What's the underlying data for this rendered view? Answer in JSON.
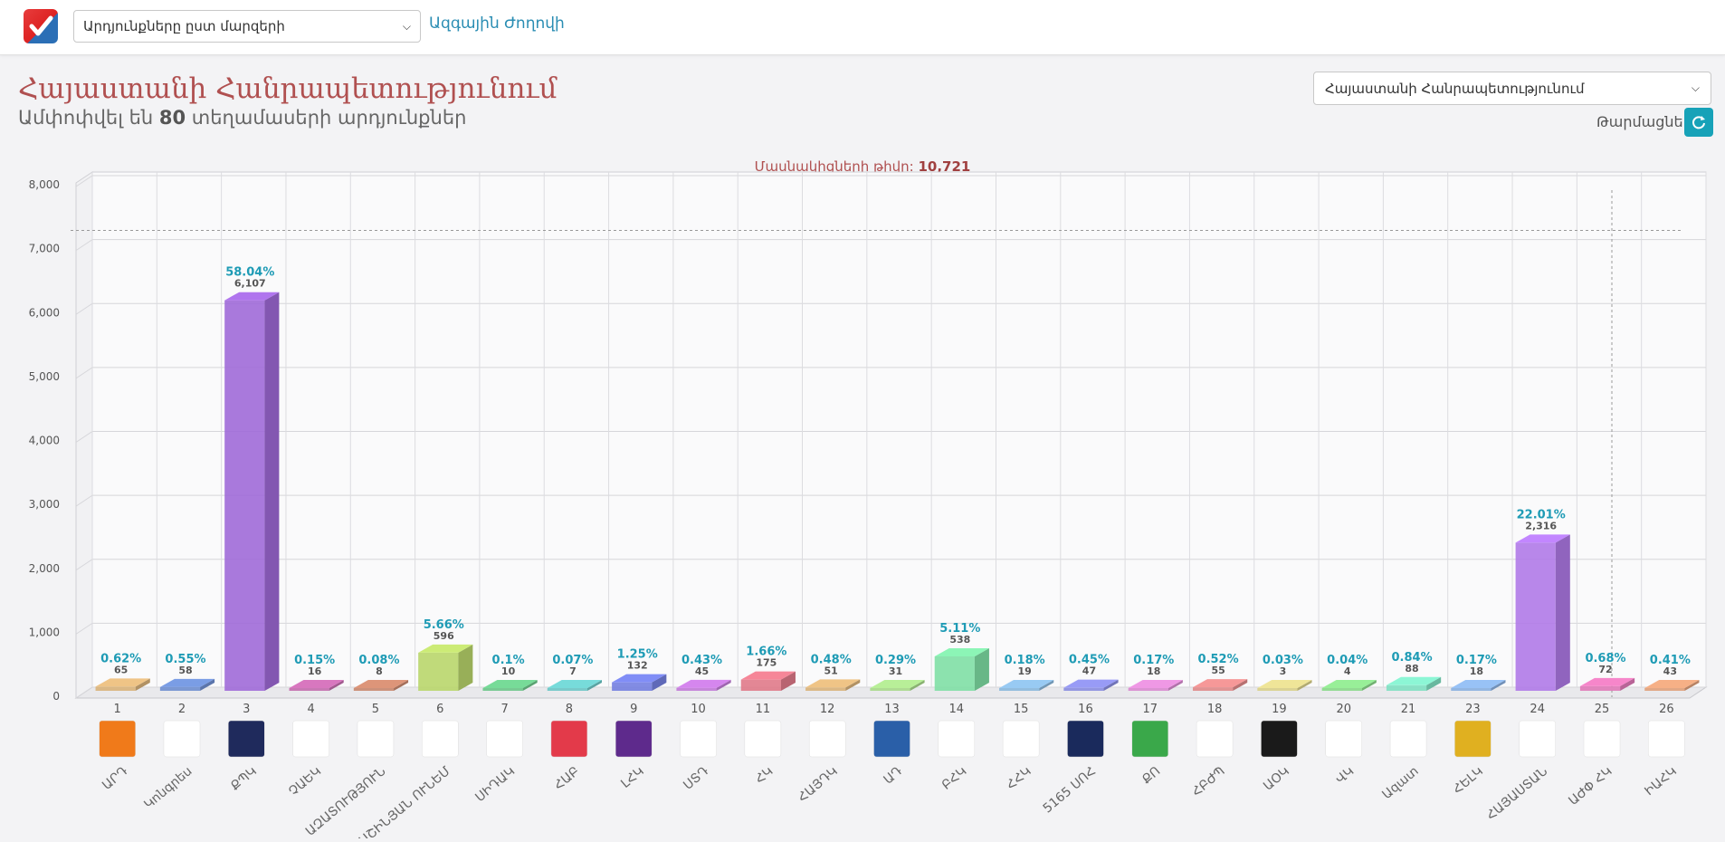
{
  "header": {
    "select_value": "Արդյունքները ըստ մարզերի",
    "nav_link": "Ազգային Ժողովի"
  },
  "main": {
    "title": "Հայաստանի Հանրապետությունում",
    "subtitle_prefix": "Ամփոփվել են ",
    "subtitle_count": "80",
    "subtitle_suffix": " տեղամասերի արդյունքներ",
    "region_select": "Հայաստանի Հանրապետությունում",
    "refresh_label": "Թարմացնել"
  },
  "colors": {
    "accent": "#2a8db3",
    "title": "#b05050",
    "percent": "#1e9bb5",
    "button": "#17a2b8"
  },
  "chart_data": {
    "type": "bar",
    "title_label": "Մասնակիցների թիվը:",
    "title_value": "10,721",
    "ylim": [
      0,
      8000
    ],
    "yticks": [
      "0",
      "1,000",
      "2,000",
      "3,000",
      "4,000",
      "5,000",
      "6,000",
      "7,000",
      "8,000"
    ],
    "grid": true,
    "categories": [
      "1",
      "2",
      "3",
      "4",
      "5",
      "6",
      "7",
      "8",
      "9",
      "10",
      "11",
      "12",
      "13",
      "14",
      "15",
      "16",
      "17",
      "18",
      "19",
      "20",
      "21",
      "23",
      "24",
      "25",
      "26"
    ],
    "party_labels": [
      "ԱՐԴ",
      "Կոնգրես",
      "ՔՊԿ",
      "ՉԱԵԿ",
      "ԱԶԱՏՈՒԹՅՈՒՆ",
      "ՊԱՇԻՆՅԱՆ ՈՒՆԵՄ",
      "ՍԻԴԱԿ",
      "ՀԱԲ",
      "ԼՀԿ",
      "ՍՏԴ",
      "ՀԿ",
      "ՀԱՅԴԿ",
      "ԱԴ",
      "ԲՀԿ",
      "ՀՀԿ",
      "5165 ՍՈՀ",
      "ՔՈ",
      "ՀԲԺՊ",
      "ԱՕԿ",
      "ՎԿ",
      "Ազատ",
      "ՀԵԼԿ",
      "ՀԱՅԱՍՏԱՆ",
      "ԱԺՓ ՀԿ",
      "ԻԱՀԿ"
    ],
    "values": [
      65,
      58,
      6107,
      16,
      8,
      596,
      10,
      7,
      132,
      45,
      175,
      51,
      31,
      538,
      19,
      47,
      18,
      55,
      3,
      4,
      88,
      18,
      2316,
      72,
      43
    ],
    "value_labels": [
      "65",
      "58",
      "6,107",
      "16",
      "8",
      "596",
      "10",
      "7",
      "132",
      "45",
      "175",
      "51",
      "31",
      "538",
      "19",
      "47",
      "18",
      "55",
      "3",
      "4",
      "88",
      "18",
      "2,316",
      "72",
      "43"
    ],
    "percents": [
      "0.62%",
      "0.55%",
      "58.04%",
      "0.15%",
      "0.08%",
      "5.66%",
      "0.1%",
      "0.07%",
      "1.25%",
      "0.43%",
      "1.66%",
      "0.48%",
      "0.29%",
      "5.11%",
      "0.18%",
      "0.45%",
      "0.17%",
      "0.52%",
      "0.03%",
      "0.04%",
      "0.84%",
      "0.17%",
      "22.01%",
      "0.68%",
      "0.41%"
    ],
    "bar_colors": [
      "#d9b27a",
      "#6f8fd0",
      "#a06ad8",
      "#c46cae",
      "#c9876e",
      "#b9d66b",
      "#6cc78a",
      "#6cc7c6",
      "#7480e0",
      "#c27ad8",
      "#e07a8a",
      "#d9b27a",
      "#a7d98a",
      "#7fdfa5",
      "#8ab8dd",
      "#8a8de0",
      "#d98ad0",
      "#e08a8a",
      "#d9d08a",
      "#8ad98a",
      "#7fe0c2",
      "#8ab0e0",
      "#b07ae8",
      "#e07ab8",
      "#e0a07a"
    ],
    "logo_colors": [
      "#f07a1a",
      "#ffffff",
      "#1f2a5c",
      "#ffffff",
      "#ffffff",
      "#ffffff",
      "#ffffff",
      "#e33a4a",
      "#5e2a8c",
      "#ffffff",
      "#ffffff",
      "#ffffff",
      "#2a5fa8",
      "#ffffff",
      "#ffffff",
      "#1a2a5c",
      "#3aa84a",
      "#ffffff",
      "#1a1a1a",
      "#ffffff",
      "#ffffff",
      "#e0b020",
      "#ffffff",
      "#ffffff",
      "#ffffff"
    ],
    "reference_line": 7200
  }
}
